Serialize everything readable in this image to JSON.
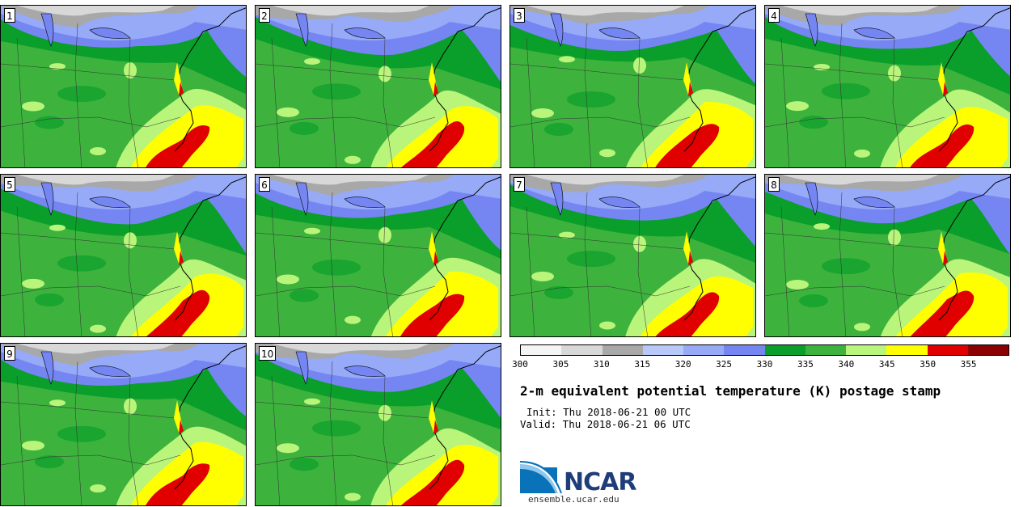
{
  "panels": [
    {
      "label": "1"
    },
    {
      "label": "2"
    },
    {
      "label": "3"
    },
    {
      "label": "4"
    },
    {
      "label": "5"
    },
    {
      "label": "6"
    },
    {
      "label": "7"
    },
    {
      "label": "8"
    },
    {
      "label": "9"
    },
    {
      "label": "10"
    }
  ],
  "colorbar": {
    "colors": [
      "#f4f4f4",
      "#d8d8d8",
      "#a8a8a8",
      "#b8c8f8",
      "#96aaf8",
      "#7586f2",
      "#0a9f2a",
      "#3db33d",
      "#b9f57a",
      "#ffff00",
      "#e00000",
      "#8b0000"
    ],
    "ticks": [
      "300",
      "305",
      "310",
      "315",
      "320",
      "325",
      "330",
      "335",
      "340",
      "345",
      "350",
      "355"
    ]
  },
  "title": "2-m equivalent potential temperature (K) postage stamp",
  "init": "Init: Thu 2018-06-21 00 UTC",
  "valid": "Valid: Thu 2018-06-21 06 UTC",
  "logo": {
    "name": "NCAR",
    "url_text": "ensemble.ucar.edu"
  }
}
